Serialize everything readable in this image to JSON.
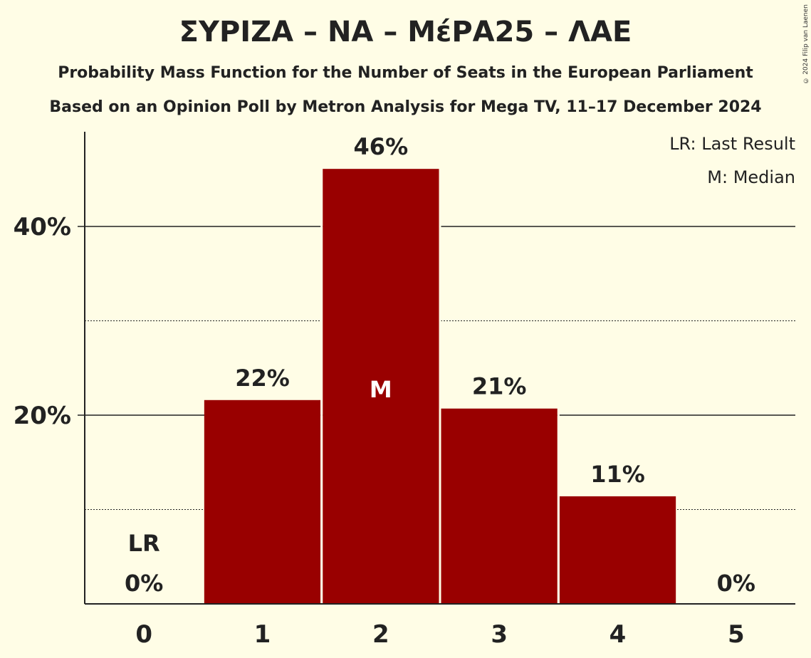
{
  "header": {
    "title": "ΣΥΡΙΖΑ – ΝΑ – ΜέΡΑ25 – ΛΑΕ",
    "subtitle_1": "Probability Mass Function for the Number of Seats in the European Parliament",
    "subtitle_2": "Based on an Opinion Poll by Metron Analysis for Mega TV, 11–17 December 2024",
    "copyright": "© 2024 Filip van Laenen"
  },
  "legend": {
    "last_result": "LR: Last Result",
    "median": "M: Median"
  },
  "colors": {
    "background": "#fffde6",
    "bar": "#990000",
    "text": "#222222"
  },
  "chart_data": {
    "type": "bar",
    "categories": [
      "0",
      "1",
      "2",
      "3",
      "4",
      "5"
    ],
    "values": [
      0,
      21.6,
      46.1,
      20.7,
      11.4,
      0
    ],
    "bar_labels": [
      "0%",
      "22%",
      "46%",
      "21%",
      "11%",
      "0%"
    ],
    "y_ticks": [
      {
        "value": 20,
        "label": "20%"
      },
      {
        "value": 40,
        "label": "40%"
      }
    ],
    "minor_gridlines": [
      10,
      30
    ],
    "ylim": [
      0,
      50
    ],
    "last_result_index": 0,
    "last_result_marker": "LR",
    "median_index": 2,
    "median_marker": "M",
    "legend_position": "top-right",
    "grid": true
  }
}
